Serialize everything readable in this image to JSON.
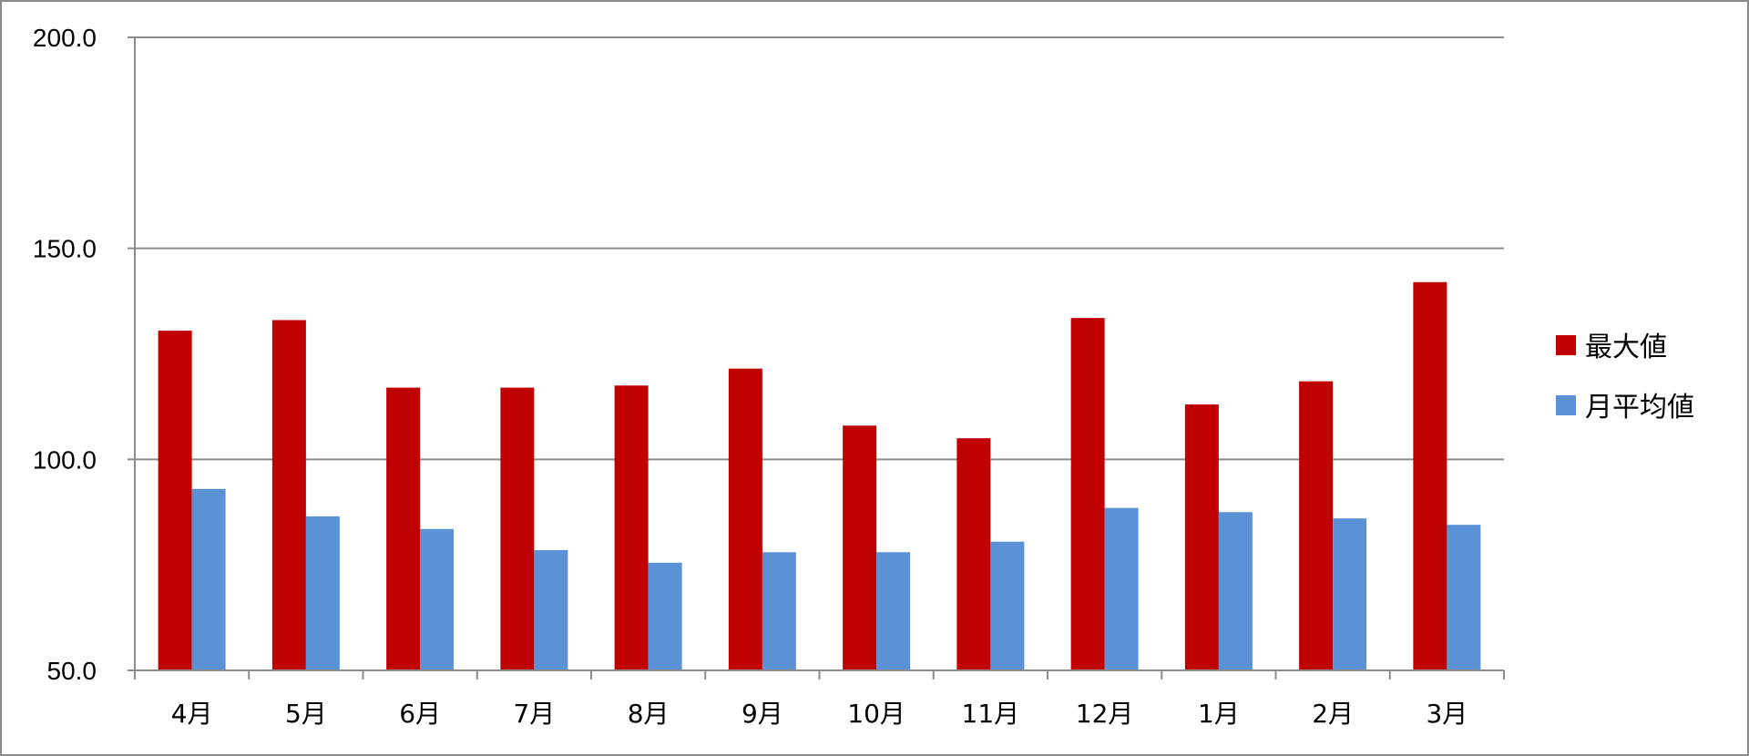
{
  "chart_data": {
    "type": "bar",
    "title": "",
    "xlabel": "",
    "ylabel": "",
    "categories": [
      "4月",
      "5月",
      "6月",
      "7月",
      "8月",
      "9月",
      "10月",
      "11月",
      "12月",
      "1月",
      "2月",
      "3月"
    ],
    "series": [
      {
        "name": "最大値",
        "color": "#c00000",
        "values": [
          130.5,
          133.0,
          117.0,
          117.0,
          117.5,
          121.5,
          108.0,
          105.0,
          133.5,
          113.0,
          118.5,
          142.0
        ]
      },
      {
        "name": "月平均値",
        "color": "#5b92d6",
        "values": [
          93.0,
          86.5,
          83.5,
          78.5,
          75.5,
          78.0,
          78.0,
          80.5,
          88.5,
          87.5,
          86.0,
          84.5
        ]
      }
    ],
    "ylim": [
      50,
      200
    ],
    "yticks": [
      "50.0",
      "100.0",
      "150.0",
      "200.0"
    ],
    "grid": true,
    "legend": "right"
  }
}
